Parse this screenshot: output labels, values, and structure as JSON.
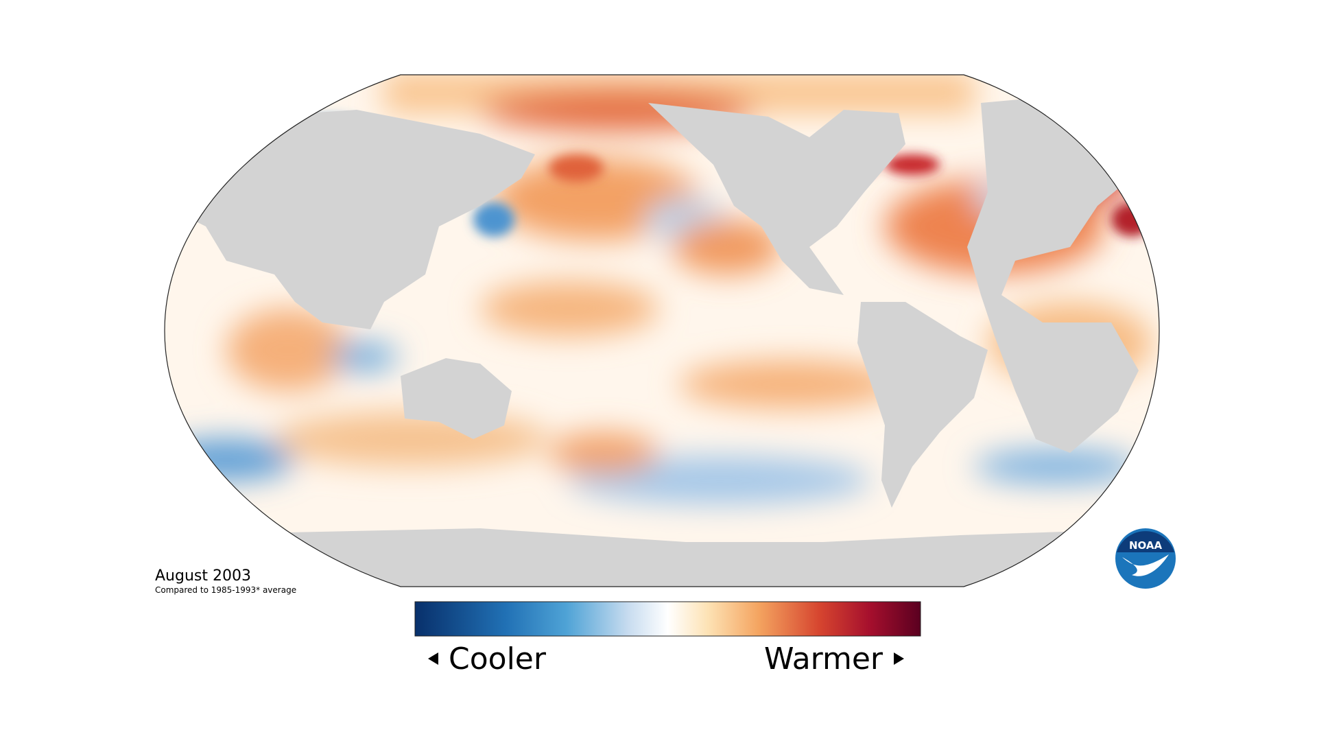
{
  "map": {
    "date": "August 2003",
    "note": "Compared to 1985-1993* average"
  },
  "legend": {
    "low": "Cooler",
    "high": "Warmer"
  },
  "logo": "NOAA"
}
